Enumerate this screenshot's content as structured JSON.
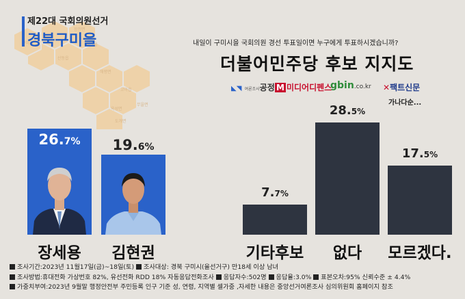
{
  "header": {
    "election": "제22대 국회의원선거",
    "region": "경북구미을"
  },
  "map": {
    "labels": [
      "구미시",
      "산동읍",
      "해평면",
      "선산읍",
      "고아읍",
      "무을면",
      "옥성면",
      "도개면",
      "장천면"
    ]
  },
  "question": "내일이 구미시을 국회의원 경선 투표일이면 누구에게 투표하시겠습니까?",
  "chart_title": "더불어민주당 후보 지지도",
  "logos": {
    "gongjeong_small": "여론조사",
    "gongjeong": "공정",
    "midiad_m": "M",
    "midiad": "미디어디펜스",
    "gbin": "gbin",
    "gbin_domain": ".co.kr",
    "fact": "팩트신문",
    "etc": "가나다순..."
  },
  "chart_data": {
    "type": "bar",
    "title": "더불어민주당 후보 지지도",
    "categories": [
      "장세용",
      "김현권",
      "기타후보",
      "없다",
      "모르겠다."
    ],
    "values": [
      26.7,
      19.6,
      7.7,
      28.5,
      17.5
    ],
    "value_labels": [
      {
        "int": "26.",
        "dec": "7%"
      },
      {
        "int": "19.",
        "dec": "6%"
      },
      {
        "int": "7.",
        "dec": "7%"
      },
      {
        "int": "28.",
        "dec": "5%"
      },
      {
        "int": "17.",
        "dec": "5%"
      }
    ],
    "unit": "%",
    "colors": {
      "candidate_panel": "#2a62c9",
      "bar": "#2e3440"
    },
    "grid": false,
    "legend": "none"
  },
  "footer": {
    "line1": [
      "조사기간:2023년 11월17일(금)~18일(토)",
      "조사대상: 경북 구미시(을선거구) 만18세 이상 남녀"
    ],
    "line2": [
      "조사방법:휴대전화 가상번호 82%, 유선전화 RDD 18% 자동응답전화조사",
      "응답자수:502명",
      "응답율:3.0%",
      "표본오차:95% 신뢰수준 ± 4.4%"
    ],
    "line3": [
      "가중치부여:2023년 9월말 행정안전부 주민등록 인구 기준 성, 연령, 지역별 셀가중 ,자세한 내용은 중앙선거여론조사 심의위원회 홈페이지 참조"
    ]
  }
}
